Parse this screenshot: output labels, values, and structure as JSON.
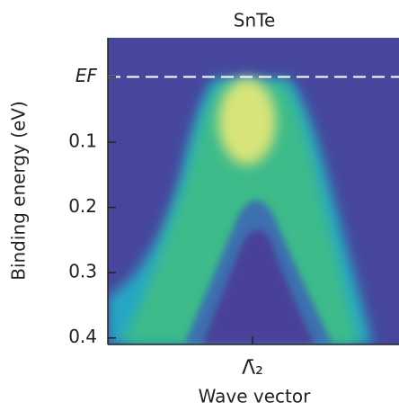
{
  "chart_data": {
    "type": "image",
    "title": "SnTe",
    "ylabel": "Binding energy (eV)",
    "xlabel": "Wave vector",
    "ylim": [
      -0.06,
      0.41
    ],
    "yticks": [
      {
        "value": 0,
        "label": "EF"
      },
      0.1,
      0.2,
      0.3,
      0.4
    ],
    "xlim": [
      -1,
      1
    ],
    "xticks": [
      {
        "value": 0,
        "label": "Λ̄₂"
      }
    ],
    "hline": 0
  }
}
